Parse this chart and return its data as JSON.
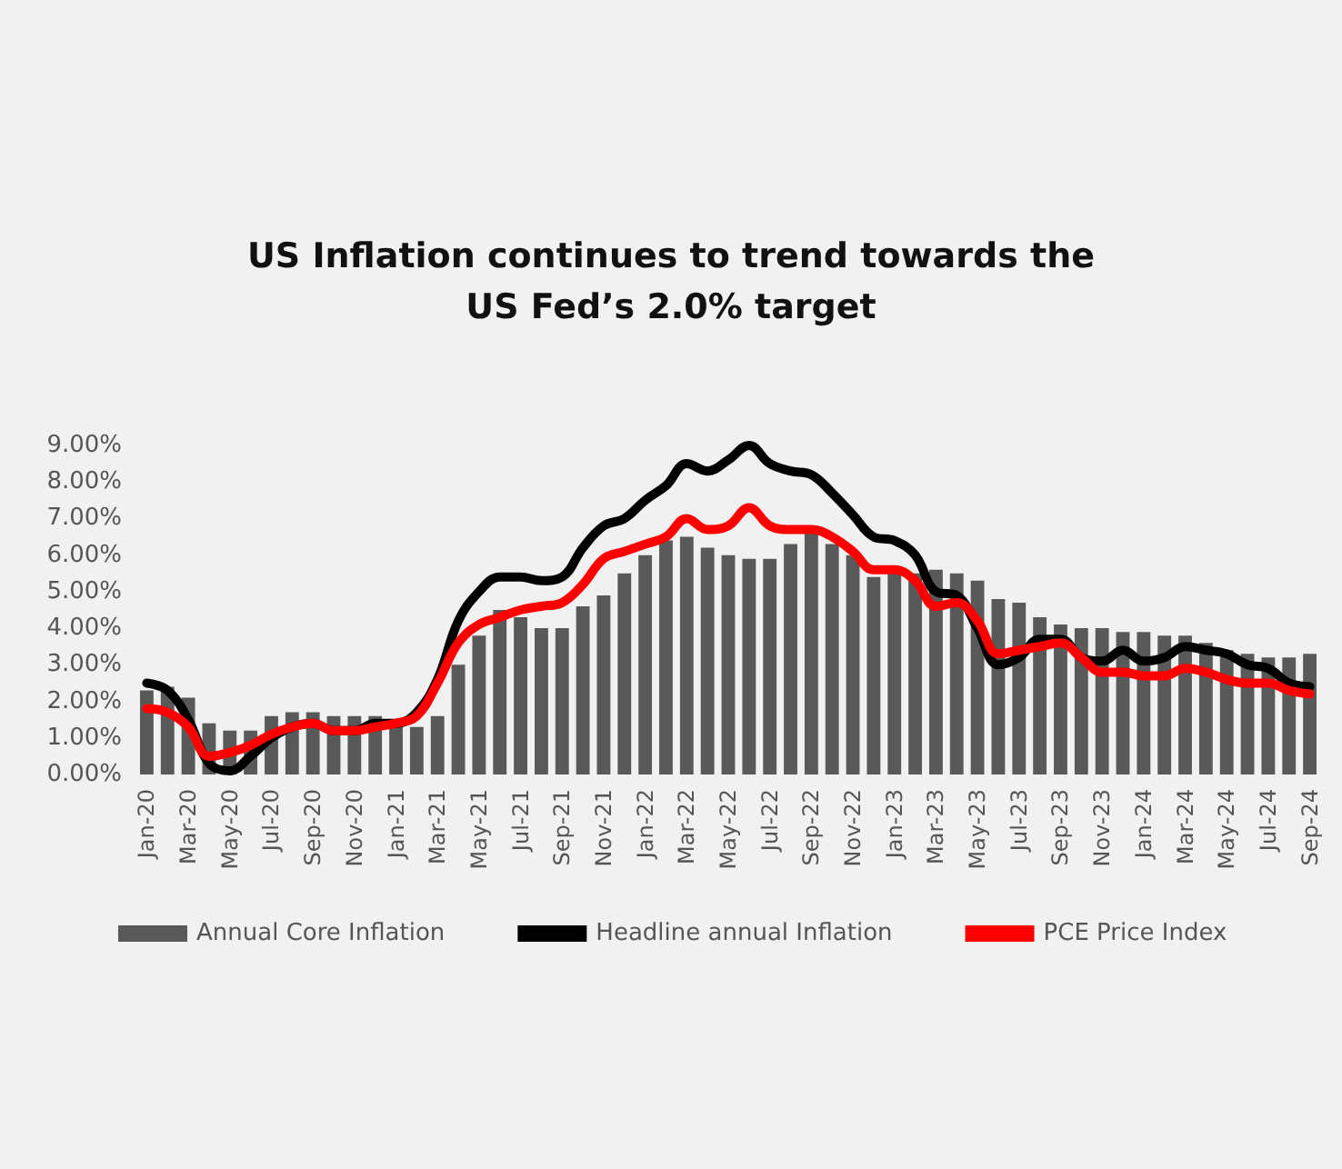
{
  "chart_data": {
    "type": "bar",
    "title": "US Inflation continues to trend towards the\nUS Fed’s 2.0% target",
    "categories": [
      "Jan-20",
      null,
      "Mar-20",
      null,
      "May-20",
      null,
      "Jul-20",
      null,
      "Sep-20",
      null,
      "Nov-20",
      null,
      "Jan-21",
      null,
      "Mar-21",
      null,
      "May-21",
      null,
      "Jul-21",
      null,
      "Sep-21",
      null,
      "Nov-21",
      null,
      "Jan-22",
      null,
      "Mar-22",
      null,
      "May-22",
      null,
      "Jul-22",
      null,
      "Sep-22",
      null,
      "Nov-22",
      null,
      "Jan-23",
      null,
      "Mar-23",
      null,
      "May-23",
      null,
      "Jul-23",
      null,
      "Sep-23",
      null,
      "Nov-23",
      null,
      "Jan-24",
      null,
      "Mar-24",
      null,
      "May-24",
      null,
      "Jul-24",
      null,
      "Sep-24"
    ],
    "series": [
      {
        "name": "Annual Core Inflation",
        "color": "#595959",
        "values": [
          2.3,
          2.4,
          2.1,
          1.4,
          1.2,
          1.2,
          1.6,
          1.7,
          1.7,
          1.6,
          1.6,
          1.6,
          1.4,
          1.3,
          1.6,
          3.0,
          3.8,
          4.5,
          4.3,
          4.0,
          4.0,
          4.6,
          4.9,
          5.5,
          6.0,
          6.4,
          6.5,
          6.2,
          6.0,
          5.9,
          5.9,
          6.3,
          6.6,
          6.3,
          6.0,
          5.4,
          5.6,
          5.5,
          5.6,
          5.5,
          5.3,
          4.8,
          4.7,
          4.3,
          4.1,
          4.0,
          4.0,
          3.9,
          3.9,
          3.8,
          3.8,
          3.6,
          3.4,
          3.3,
          3.2,
          3.2,
          3.3
        ]
      },
      {
        "name": "Headline annual Inflation",
        "type": "line",
        "color": "#000000",
        "values": [
          2.5,
          2.3,
          1.5,
          0.3,
          0.1,
          0.5,
          1.0,
          1.3,
          1.4,
          1.2,
          1.2,
          1.4,
          1.4,
          1.7,
          2.6,
          4.2,
          5.0,
          5.4,
          5.4,
          5.3,
          5.4,
          6.2,
          6.8,
          7.0,
          7.5,
          7.9,
          8.5,
          8.3,
          8.6,
          9.0,
          8.5,
          8.3,
          8.2,
          7.7,
          7.1,
          6.5,
          6.4,
          6.0,
          5.0,
          4.9,
          4.0,
          3.0,
          3.2,
          3.7,
          3.7,
          3.2,
          3.1,
          3.4,
          3.1,
          3.2,
          3.5,
          3.4,
          3.3,
          3.0,
          2.9,
          2.5,
          2.4
        ]
      },
      {
        "name": "PCE Price Index",
        "type": "line",
        "color": "#ff0000",
        "values": [
          1.8,
          1.7,
          1.3,
          0.5,
          0.6,
          0.8,
          1.1,
          1.3,
          1.4,
          1.2,
          1.2,
          1.3,
          1.4,
          1.6,
          2.5,
          3.6,
          4.1,
          4.3,
          4.5,
          4.6,
          4.7,
          5.2,
          5.9,
          6.1,
          6.3,
          6.5,
          7.0,
          6.7,
          6.8,
          7.3,
          6.8,
          6.7,
          6.7,
          6.5,
          6.1,
          5.6,
          5.6,
          5.3,
          4.6,
          4.7,
          4.2,
          3.3,
          3.4,
          3.5,
          3.6,
          3.2,
          2.8,
          2.8,
          2.7,
          2.7,
          2.9,
          2.8,
          2.6,
          2.5,
          2.5,
          2.3,
          2.2
        ]
      }
    ],
    "ylim": [
      0,
      9
    ],
    "yticks": [
      {
        "value": 0,
        "label": "0.00%"
      },
      {
        "value": 1,
        "label": "1.00%"
      },
      {
        "value": 2,
        "label": "2.00%"
      },
      {
        "value": 3,
        "label": "3.00%"
      },
      {
        "value": 4,
        "label": "4.00%"
      },
      {
        "value": 5,
        "label": "5.00%"
      },
      {
        "value": 6,
        "label": "6.00%"
      },
      {
        "value": 7,
        "label": "7.00%"
      },
      {
        "value": 8,
        "label": "8.00%"
      },
      {
        "value": 9,
        "label": "9.00%"
      }
    ],
    "legend": "bottom",
    "grid": false,
    "marker": "none"
  }
}
